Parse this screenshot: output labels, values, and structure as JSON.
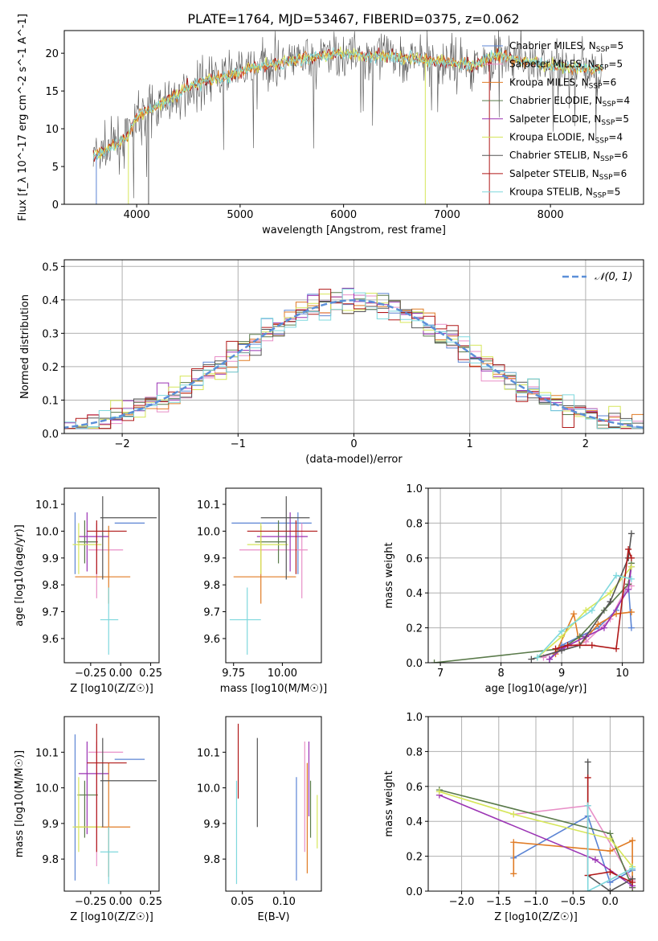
{
  "title": "PLATE=1764, MJD=53467, FIBERID=0375, z=0.062",
  "colors": {
    "chabrier_miles": "#5b84d4",
    "salpeter_miles": "#e88fc7",
    "kroupa_miles": "#e07b24",
    "chabrier_elodie": "#5a7a4a",
    "salpeter_elodie": "#9b34b4",
    "kroupa_elodie": "#d6e65a",
    "chabrier_stelib": "#555555",
    "salpeter_stelib": "#b01818",
    "kroupa_stelib": "#7fd8dd",
    "gaussian": "#5b8fd8"
  },
  "chart_data": [
    {
      "id": "spectrum",
      "type": "line",
      "xlabel": "wavelength [Angstrom, rest frame]",
      "ylabel": "Flux [f_λ 10^-17 erg cm^-2 s^-1 A^-1]",
      "xlim": [
        3300,
        8900
      ],
      "ylim": [
        0,
        23
      ],
      "xticks": [
        4000,
        5000,
        6000,
        7000,
        8000
      ],
      "yticks": [
        0,
        5,
        10,
        15,
        20
      ],
      "legend_position": "right",
      "continuum": {
        "x": [
          3580,
          3700,
          3800,
          3900,
          4000,
          4100,
          4200,
          4300,
          4400,
          4500,
          4700,
          4900,
          5100,
          5300,
          5500,
          5700,
          5900,
          6100,
          6300,
          6500,
          6700,
          6900,
          7100,
          7300,
          7500,
          7700,
          7900,
          8100,
          8300,
          8500
        ],
        "y": [
          6.5,
          7.0,
          8.0,
          8.8,
          11.5,
          12.5,
          13.0,
          13.8,
          14.5,
          15.5,
          16.5,
          17.0,
          18.0,
          18.5,
          19.0,
          19.5,
          20.0,
          19.8,
          19.6,
          19.5,
          19.3,
          19.0,
          18.6,
          18.5,
          19.8,
          19.0,
          18.5,
          18.2,
          18.0,
          18.0
        ]
      },
      "legend": [
        {
          "label": "Chabrier MILES, N",
          "nssp": "=5",
          "color_key": "chabrier_miles"
        },
        {
          "label": "Salpeter MILES, N",
          "nssp": "=5",
          "color_key": "salpeter_miles"
        },
        {
          "label": "Kroupa MILES, N",
          "nssp": "=6",
          "color_key": "kroupa_miles"
        },
        {
          "label": "Chabrier ELODIE, N",
          "nssp": "=4",
          "color_key": "chabrier_elodie"
        },
        {
          "label": "Salpeter ELODIE, N",
          "nssp": "=5",
          "color_key": "salpeter_elodie"
        },
        {
          "label": "Kroupa ELODIE, N",
          "nssp": "=4",
          "color_key": "kroupa_elodie"
        },
        {
          "label": "Chabrier STELIB, N",
          "nssp": "=6",
          "color_key": "chabrier_stelib"
        },
        {
          "label": "Salpeter STELIB, N",
          "nssp": "=6",
          "color_key": "salpeter_stelib"
        },
        {
          "label": "Kroupa STELIB, N",
          "nssp": "=5",
          "color_key": "kroupa_stelib"
        }
      ]
    },
    {
      "id": "residuals",
      "type": "bar",
      "xlabel": "(data-model)/error",
      "ylabel": "Normed distribution",
      "xlim": [
        -2.5,
        2.5
      ],
      "ylim": [
        0,
        0.52
      ],
      "xticks": [
        -2,
        -1,
        0,
        1,
        2
      ],
      "yticks": [
        0.0,
        0.1,
        0.2,
        0.3,
        0.4,
        0.5
      ],
      "grid": true,
      "legend": [
        {
          "label": "𝒩(0, 1)",
          "color_key": "gaussian"
        }
      ],
      "legend_position": "top-right"
    },
    {
      "id": "age_vs_z",
      "type": "scatter",
      "xlabel": "Z [log10(Z/Z☉)]",
      "ylabel": "age  [log10(age/yr)]",
      "xlim": [
        -0.47,
        0.32
      ],
      "ylim": [
        9.51,
        10.16
      ],
      "xticks": [
        -0.25,
        0.0,
        0.25
      ],
      "yticks": [
        9.6,
        9.7,
        9.8,
        9.9,
        10.0,
        10.1
      ]
    },
    {
      "id": "age_vs_mass",
      "type": "scatter",
      "xlabel": "mass [log10(M/M☉)]",
      "ylabel": "",
      "xlim": [
        9.71,
        10.2
      ],
      "ylim": [
        9.51,
        10.16
      ],
      "xticks": [
        9.75,
        10.0
      ],
      "yticks": [
        9.6,
        9.7,
        9.8,
        9.9,
        10.0,
        10.1
      ]
    },
    {
      "id": "weight_vs_age",
      "type": "line",
      "xlabel": "age  [log10(age/yr)]",
      "ylabel": "mass weight",
      "xlim": [
        6.8,
        10.35
      ],
      "ylim": [
        0.0,
        1.0
      ],
      "xticks": [
        7,
        8,
        9,
        10
      ],
      "yticks": [
        0.0,
        0.2,
        0.4,
        0.6,
        0.8,
        1.0
      ],
      "grid": true
    },
    {
      "id": "mass_vs_z",
      "type": "scatter",
      "xlabel": "Z [log10(Z/Z☉)]",
      "ylabel": "mass [log10(M/M☉)]",
      "xlim": [
        -0.47,
        0.32
      ],
      "ylim": [
        9.71,
        10.2
      ],
      "xticks": [
        -0.25,
        0.0,
        0.25
      ],
      "yticks": [
        9.8,
        9.9,
        10.0,
        10.1
      ]
    },
    {
      "id": "mass_vs_ebv",
      "type": "scatter",
      "xlabel": "E(B-V)",
      "ylabel": "",
      "xlim": [
        0.03,
        0.145
      ],
      "ylim": [
        9.71,
        10.2
      ],
      "xticks": [
        0.05,
        0.1
      ],
      "yticks": [
        9.8,
        9.9,
        10.0,
        10.1
      ]
    },
    {
      "id": "weight_vs_z",
      "type": "line",
      "xlabel": "Z [log10(Z/Z☉)]",
      "ylabel": "mass weight",
      "xlim": [
        -2.45,
        0.45
      ],
      "ylim": [
        0.0,
        1.0
      ],
      "xticks": [
        -2.0,
        -1.5,
        -1.0,
        -0.5,
        0.0
      ],
      "yticks": [
        0.0,
        0.2,
        0.4,
        0.6,
        0.8,
        1.0
      ],
      "grid": true
    }
  ],
  "models": [
    {
      "key": "chabrier_miles",
      "z": -0.38,
      "zerr": [
        -0.05,
        0.2
      ],
      "age": 10.03,
      "ageerr": [
        9.84,
        10.07
      ],
      "mass": 10.08,
      "masserr": [
        9.74,
        10.15
      ],
      "ebv": 0.115,
      "ebverr": [
        9.74,
        10.03
      ],
      "sfh_age": [
        8.8,
        9.0,
        9.3,
        9.6,
        9.9,
        10.1,
        10.15
      ],
      "sfh_w": [
        0.02,
        0.1,
        0.15,
        0.2,
        0.3,
        0.45,
        0.2
      ],
      "sfh_z": [
        -1.3,
        -0.3,
        0.0,
        0.3
      ],
      "sfh_zw": [
        0.19,
        0.43,
        0.05,
        0.12
      ]
    },
    {
      "key": "salpeter_miles",
      "z": -0.2,
      "zerr": [
        -0.27,
        0.02
      ],
      "age": 9.93,
      "ageerr": [
        9.75,
        10.03
      ],
      "mass": 10.1,
      "masserr": [
        9.78,
        10.13
      ],
      "ebv": 0.125,
      "ebverr": [
        9.82,
        10.13
      ],
      "sfh_age": [
        8.7,
        9.0,
        9.4,
        9.8,
        10.1,
        10.15
      ],
      "sfh_w": [
        0.03,
        0.08,
        0.12,
        0.25,
        0.45,
        0.44
      ],
      "sfh_z": [
        -1.3,
        -0.3,
        0.3
      ],
      "sfh_zw": [
        0.44,
        0.49,
        0.06
      ]
    },
    {
      "key": "kroupa_miles",
      "z": -0.1,
      "zerr": [
        -0.38,
        0.08
      ],
      "age": 9.83,
      "ageerr": [
        9.73,
        10.02
      ],
      "mass": 9.89,
      "masserr": [
        9.75,
        10.07
      ],
      "ebv": 0.128,
      "ebverr": [
        9.76,
        10.07
      ],
      "sfh_age": [
        8.9,
        9.2,
        9.3,
        9.6,
        9.9,
        10.15
      ],
      "sfh_w": [
        0.05,
        0.28,
        0.1,
        0.22,
        0.28,
        0.29
      ],
      "sfh_z": [
        -1.3,
        -1.3,
        0.0,
        0.3,
        0.3
      ],
      "sfh_zw": [
        0.1,
        0.28,
        0.23,
        0.29,
        0.02
      ]
    },
    {
      "key": "chabrier_elodie",
      "z": -0.3,
      "zerr": [
        -0.36,
        -0.19
      ],
      "age": 9.96,
      "ageerr": [
        9.88,
        10.04
      ],
      "mass": 9.98,
      "masserr": [
        9.86,
        10.02
      ],
      "ebv": 0.132,
      "ebverr": [
        9.86,
        10.02
      ],
      "sfh_age": [
        6.9,
        9.0,
        9.3,
        9.7,
        10.1,
        10.15
      ],
      "sfh_w": [
        0.0,
        0.08,
        0.15,
        0.3,
        0.45,
        0.57
      ],
      "sfh_z": [
        -2.3,
        0.0,
        0.3
      ],
      "sfh_zw": [
        0.58,
        0.33,
        0.02
      ]
    },
    {
      "key": "salpeter_elodie",
      "z": -0.28,
      "zerr": [
        -0.35,
        -0.1
      ],
      "age": 9.98,
      "ageerr": [
        9.85,
        10.07
      ],
      "mass": 10.04,
      "masserr": [
        9.87,
        10.13
      ],
      "ebv": 0.13,
      "ebverr": [
        9.92,
        10.13
      ],
      "sfh_age": [
        8.8,
        9.0,
        9.4,
        9.7,
        10.1,
        10.15
      ],
      "sfh_w": [
        0.02,
        0.08,
        0.15,
        0.2,
        0.42,
        0.55
      ],
      "sfh_z": [
        -2.3,
        -0.2,
        0.3
      ],
      "sfh_zw": [
        0.55,
        0.18,
        0.03
      ]
    },
    {
      "key": "kroupa_elodie",
      "z": -0.35,
      "zerr": [
        -0.4,
        -0.16
      ],
      "age": 9.95,
      "ageerr": [
        9.84,
        10.03
      ],
      "mass": 9.89,
      "masserr": [
        9.82,
        10.03
      ],
      "ebv": 0.14,
      "ebverr": [
        9.83,
        9.98
      ],
      "sfh_age": [
        8.6,
        9.0,
        9.4,
        9.8,
        10.15
      ],
      "sfh_w": [
        0.03,
        0.15,
        0.3,
        0.4,
        0.55
      ],
      "sfh_z": [
        -2.3,
        -1.3,
        0.0,
        0.3
      ],
      "sfh_zw": [
        0.57,
        0.44,
        0.3,
        0.14
      ]
    },
    {
      "key": "chabrier_stelib",
      "z": -0.15,
      "zerr": [
        -0.17,
        0.3
      ],
      "age": 10.05,
      "ageerr": [
        9.82,
        10.13
      ],
      "mass": 10.02,
      "masserr": [
        9.89,
        10.14
      ],
      "ebv": 0.068,
      "ebverr": [
        9.89,
        10.14
      ],
      "sfh_age": [
        8.5,
        9.0,
        9.3,
        9.8,
        10.1,
        10.15
      ],
      "sfh_w": [
        0.02,
        0.07,
        0.1,
        0.35,
        0.6,
        0.74
      ],
      "sfh_z": [
        -0.3,
        -0.3,
        0.0,
        0.3
      ],
      "sfh_zw": [
        0.74,
        0.09,
        0.0,
        0.07
      ]
    },
    {
      "key": "salpeter_stelib",
      "z": -0.2,
      "zerr": [
        -0.28,
        0.05
      ],
      "age": 10.0,
      "ageerr": [
        9.84,
        10.04
      ],
      "mass": 10.07,
      "masserr": [
        9.82,
        10.18
      ],
      "ebv": 0.045,
      "ebverr": [
        9.97,
        10.18
      ],
      "sfh_age": [
        8.9,
        9.1,
        9.5,
        9.9,
        10.1,
        10.15
      ],
      "sfh_w": [
        0.08,
        0.1,
        0.1,
        0.08,
        0.65,
        0.6
      ],
      "sfh_z": [
        -0.3,
        -0.3,
        0.0,
        0.3
      ],
      "sfh_zw": [
        0.65,
        0.09,
        0.11,
        0.05
      ]
    },
    {
      "key": "kroupa_stelib",
      "z": -0.1,
      "zerr": [
        -0.17,
        -0.02
      ],
      "age": 9.67,
      "ageerr": [
        9.54,
        9.79
      ],
      "mass": 9.82,
      "masserr": [
        9.73,
        9.89
      ],
      "ebv": 0.043,
      "ebverr": [
        9.73,
        10.02
      ],
      "sfh_age": [
        8.6,
        9.0,
        9.5,
        9.9,
        10.15
      ],
      "sfh_w": [
        0.03,
        0.18,
        0.3,
        0.5,
        0.48
      ],
      "sfh_z": [
        -0.3,
        -0.3,
        0.3
      ],
      "sfh_zw": [
        0.49,
        0.0,
        0.13
      ]
    }
  ]
}
